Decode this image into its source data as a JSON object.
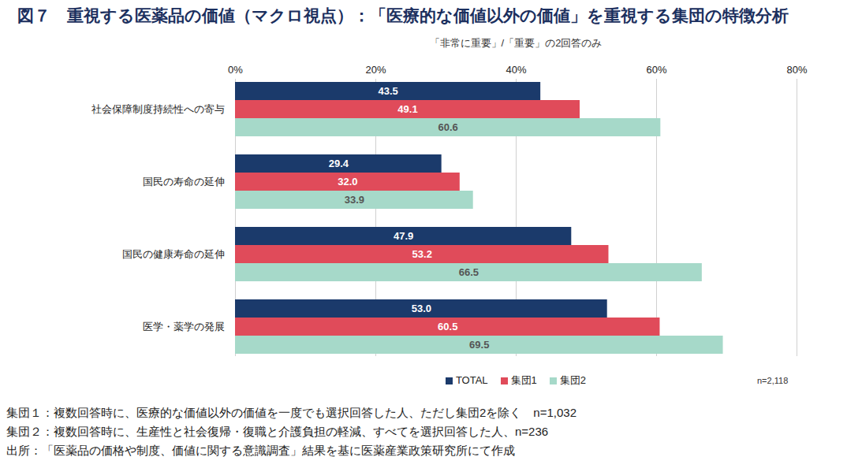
{
  "chart_data": {
    "type": "bar",
    "orientation": "horizontal",
    "title": "図７　重視する医薬品の価値（マクロ視点）：「医療的な価値以外の価値」を重視する集団の特徴分析",
    "subtitle": "「非常に重要」/「重要」の2回答のみ",
    "categories": [
      "社会保障制度持続性への寄与",
      "国民の寿命の延伸",
      "国民の健康寿命の延伸",
      "医学・薬学の発展"
    ],
    "series": [
      {
        "name": "TOTAL",
        "color": "#1b3a6b",
        "values": [
          43.5,
          29.4,
          47.9,
          53.0
        ],
        "value_labels": [
          "43.5",
          "29.4",
          "47.9",
          "53.0"
        ]
      },
      {
        "name": "集団1",
        "color": "#e04b5a",
        "values": [
          49.1,
          32.0,
          53.2,
          60.5
        ],
        "value_labels": [
          "49.1",
          "32.0",
          "53.2",
          "60.5"
        ]
      },
      {
        "name": "集団2",
        "color": "#a6d9c9",
        "values": [
          60.6,
          33.9,
          66.5,
          69.5
        ],
        "value_labels": [
          "60.6",
          "33.9",
          "66.5",
          "69.5"
        ]
      }
    ],
    "xlim": [
      0,
      80
    ],
    "xticks": [
      {
        "value": 0,
        "label": "0%"
      },
      {
        "value": 20,
        "label": "20%"
      },
      {
        "value": 40,
        "label": "40%"
      },
      {
        "value": 60,
        "label": "60%"
      },
      {
        "value": 80,
        "label": "80%"
      }
    ],
    "grid": true,
    "data_labels": true,
    "legend": "bottom",
    "annotations": [
      "n=2,118"
    ],
    "notes": [
      "集団１：複数回答時に、医療的な価値以外の価値を一度でも選択回答した人、ただし集団2を除く　n=1,032",
      "集団２：複数回答時に、生産性と社会復帰・復職と介護負担の軽減、すべてを選択回答した人、n=236",
      "出所：「医薬品の価格や制度、価値に関する意識調査」結果を基に医薬産業政策研究所にて作成"
    ]
  }
}
